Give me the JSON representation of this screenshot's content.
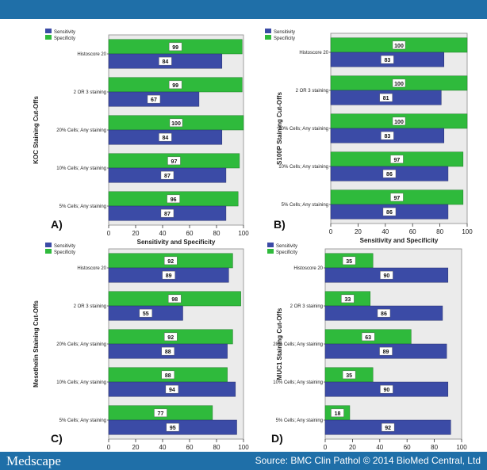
{
  "header": {},
  "footer": {
    "brand": "Medscape",
    "source": "Source: BMC Clin Pathol © 2014 BioMed Central, Ltd"
  },
  "colors": {
    "sensitivity": "#3b4ba6",
    "specificity": "#2fba3c",
    "plot_bg": "#ebebeb",
    "banner": "#1f6fa8"
  },
  "chart_data": [
    {
      "type": "bar",
      "panel_label": "A)",
      "ylabel": "KOC Staining Cut-Offs",
      "xlabel": "Sensitivity and Specificity",
      "categories": [
        "Histoscore 20",
        "2 OR 3 staining",
        "20% Cells; Any staining",
        "10% Cells; Any staining",
        "5% Cells; Any staining"
      ],
      "series": [
        {
          "name": "Sensitivity",
          "values": [
            84,
            67,
            84,
            87,
            87
          ]
        },
        {
          "name": "Specificity",
          "values": [
            99,
            99,
            100,
            97,
            96
          ]
        }
      ],
      "xlim": [
        0,
        100
      ],
      "ticks": [
        0,
        20,
        40,
        60,
        80,
        100
      ],
      "legend": "top-left"
    },
    {
      "type": "bar",
      "panel_label": "B)",
      "ylabel": "S100P Staining Cut-Offs",
      "xlabel": "Sensitivity and Specificity",
      "categories": [
        "Histoscore 20",
        "2 OR 3 staining",
        "20% Cells; Any staining",
        "10% Cells; Any staining",
        "5% Cells; Any staining"
      ],
      "series": [
        {
          "name": "Sensitivity",
          "values": [
            83,
            81,
            83,
            86,
            86
          ]
        },
        {
          "name": "Specificity",
          "values": [
            100,
            100,
            100,
            97,
            97
          ]
        }
      ],
      "xlim": [
        0,
        100
      ],
      "ticks": [
        0,
        20,
        40,
        60,
        80,
        100
      ],
      "legend": "top-left"
    },
    {
      "type": "bar",
      "panel_label": "C)",
      "ylabel": "Mesothelin Staining Cut-Offs",
      "xlabel": "Sensitivity and Specificity",
      "categories": [
        "Histoscore 20",
        "2 OR 3 staining",
        "20% Cells; Any staining",
        "10% Cells; Any staining",
        "5% Cells; Any staining"
      ],
      "series": [
        {
          "name": "Sensitivity",
          "values": [
            89,
            55,
            88,
            94,
            95
          ]
        },
        {
          "name": "Specificity",
          "values": [
            92,
            98,
            92,
            88,
            77
          ]
        }
      ],
      "xlim": [
        0,
        100
      ],
      "ticks": [
        0,
        20,
        40,
        60,
        80,
        100
      ],
      "legend": "top-left"
    },
    {
      "type": "bar",
      "panel_label": "D)",
      "ylabel": "MUC1 Staining Cut-Offs",
      "xlabel": "Sensitivity and Specificity",
      "categories": [
        "Histoscore 20",
        "2 OR 3 staining",
        "20% Cells; Any staining",
        "10% Cells; Any staining",
        "5% Cells; Any staining"
      ],
      "series": [
        {
          "name": "Sensitivity",
          "values": [
            90,
            86,
            89,
            90,
            92
          ]
        },
        {
          "name": "Specificity",
          "values": [
            35,
            33,
            63,
            35,
            18
          ]
        }
      ],
      "xlim": [
        0,
        100
      ],
      "ticks": [
        0,
        20,
        40,
        60,
        80,
        100
      ],
      "legend": "top-left"
    }
  ]
}
